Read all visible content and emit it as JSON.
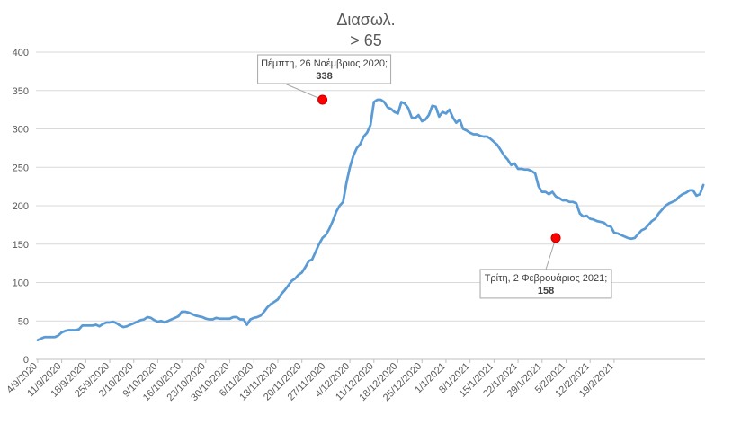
{
  "chart_data": {
    "type": "line",
    "title_lines": [
      "Διασωλ.",
      "> 65"
    ],
    "xlabel": "",
    "ylabel": "",
    "ylim": [
      0,
      400
    ],
    "y_ticks": [
      0,
      50,
      100,
      150,
      200,
      250,
      300,
      350,
      400
    ],
    "grid": true,
    "legend": "none",
    "x_start": "2020-09-04",
    "tick_labels": [
      "4/9/2020",
      "11/9/2020",
      "18/9/2020",
      "25/9/2020",
      "2/10/2020",
      "9/10/2020",
      "16/10/2020",
      "23/10/2020",
      "30/10/2020",
      "6/11/2020",
      "13/11/2020",
      "20/11/2020",
      "27/11/2020",
      "4/12/2020",
      "11/12/2020",
      "18/12/2020",
      "25/12/2020",
      "1/1/2021",
      "8/1/2021",
      "15/1/2021",
      "22/1/2021",
      "29/1/2021",
      "5/2/2021",
      "12/2/2021",
      "19/2/2021"
    ],
    "line_color": "#5B9BD5",
    "marker_color": "#FF0000",
    "series": [
      {
        "values": [
          25,
          27,
          29,
          29,
          29,
          29,
          31,
          35,
          37,
          38,
          38,
          38,
          39,
          44,
          44,
          44,
          44,
          45,
          43,
          46,
          48,
          48,
          49,
          47,
          44,
          42,
          43,
          45,
          47,
          49,
          51,
          52,
          55,
          54,
          51,
          49,
          50,
          48,
          50,
          52,
          54,
          56,
          62,
          62,
          61,
          59,
          57,
          56,
          55,
          53,
          52,
          52,
          54,
          53,
          53,
          53,
          53,
          55,
          55,
          52,
          52,
          45,
          52,
          54,
          55,
          57,
          62,
          68,
          72,
          75,
          78,
          85,
          90,
          96,
          102,
          105,
          110,
          113,
          120,
          128,
          130,
          140,
          150,
          158,
          162,
          170,
          180,
          192,
          200,
          205,
          230,
          250,
          265,
          275,
          280,
          290,
          295,
          305,
          335,
          338,
          338,
          335,
          328,
          326,
          322,
          320,
          335,
          333,
          327,
          315,
          314,
          318,
          310,
          312,
          318,
          330,
          329,
          316,
          322,
          320,
          325,
          315,
          308,
          312,
          300,
          298,
          295,
          293,
          293,
          291,
          290,
          290,
          287,
          283,
          279,
          272,
          265,
          260,
          253,
          255,
          248,
          248,
          247,
          247,
          245,
          242,
          225,
          218,
          218,
          215,
          218,
          212,
          210,
          207,
          207,
          205,
          205,
          203,
          190,
          186,
          187,
          183,
          182,
          180,
          179,
          178,
          174,
          173,
          165,
          164,
          162,
          160,
          158,
          157,
          158,
          163,
          168,
          170,
          175,
          180,
          183,
          190,
          195,
          200,
          203,
          205,
          207,
          212,
          215,
          217,
          220,
          220,
          213,
          215,
          227
        ]
      }
    ],
    "annotations": [
      {
        "text_line1": "Πέμπτη, 26 Νοέμβριος 2020;",
        "text_line2": "338",
        "date": "2020-11-26",
        "value": 338
      },
      {
        "text_line1": "Τρίτη, 2 Φεβρουάριος 2021;",
        "text_line2": "158",
        "date": "2021-02-02",
        "value": 158
      }
    ]
  }
}
